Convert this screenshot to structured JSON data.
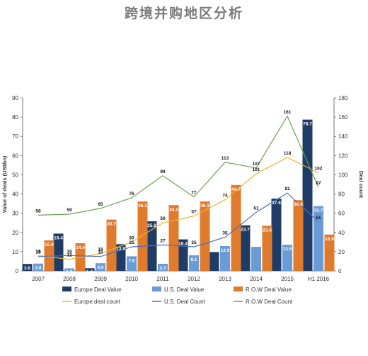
{
  "title": "跨境并购地区分析",
  "chart_data": {
    "type": "bar",
    "title": "跨境并购地区分析",
    "categories": [
      "2007",
      "2008",
      "2009",
      "2010",
      "2011",
      "2012",
      "2013",
      "2014",
      "2015",
      "H1 2016"
    ],
    "ylabel": "Value of deals (US$bn)",
    "y2label": "Deal count",
    "ylim": [
      0,
      90
    ],
    "y2lim": [
      0,
      180
    ],
    "yticks": [
      "0",
      "10",
      "20",
      "30",
      "40",
      "50",
      "60",
      "70",
      "80",
      "90"
    ],
    "y2ticks": [
      "0",
      "20",
      "40",
      "60",
      "80",
      "100",
      "120",
      "140",
      "160",
      "180"
    ],
    "grid": false,
    "legend_position": "bottom",
    "bar_series": [
      {
        "name": "Europe Deal Value",
        "color": "#1f3c66",
        "values": [
          3.6,
          19.4,
          1.4,
          13.9,
          25.8,
          16.4,
          9.8,
          23.7,
          37.6,
          78.7
        ],
        "labels": [
          "3.6",
          "19.4",
          "1.4",
          "13.9",
          "25.8",
          "16.4",
          "",
          "23.7",
          "37.6",
          "78.7"
        ]
      },
      {
        "name": "U.S. Deal Value",
        "color": "#6b9bd6",
        "values": [
          3.8,
          1.3,
          4.0,
          7.6,
          3.7,
          8.1,
          12.9,
          12.5,
          13.6,
          33.7
        ],
        "labels": [
          "3.8",
          "1.3",
          "4.0",
          "7.6",
          "3.7",
          "8.1",
          "12.9",
          "",
          "13.6",
          "33.7"
        ]
      },
      {
        "name": "R.O.W Deal Value",
        "color": "#e07b2e",
        "values": [
          15.9,
          14.4,
          26.7,
          36.1,
          34.2,
          36.1,
          44.7,
          23.5,
          36.8,
          18.9
        ],
        "labels": [
          "15.9",
          "14.4",
          "26.7",
          "36.1",
          "34.2",
          "36.1",
          "44.7",
          "23.5",
          "36.8",
          "18.9"
        ]
      }
    ],
    "line_series": [
      {
        "name": "Europe deal count",
        "color": "#f0b429",
        "values": [
          16,
          12,
          18,
          30,
          50,
          57,
          74,
          101,
          118,
          102
        ],
        "labels": [
          "16",
          "12",
          "18",
          "30",
          "50",
          "57",
          "74",
          "101",
          "118",
          "102"
        ]
      },
      {
        "name": "U.S. Deal Count",
        "color": "#4a6fc0",
        "values": [
          15,
          16,
          15,
          25,
          27,
          25,
          35,
          61,
          81,
          51
        ],
        "labels": [
          "15",
          "16",
          "15",
          "25",
          "27",
          "25",
          "35",
          "61",
          "81",
          "51"
        ]
      },
      {
        "name": "R.O.W Deal Count",
        "color": "#6da34d",
        "values": [
          58,
          59,
          65,
          76,
          99,
          77,
          113,
          107,
          161,
          87
        ],
        "labels": [
          "58",
          "59",
          "65",
          "76",
          "99",
          "77",
          "113",
          "107",
          "161",
          "87"
        ]
      }
    ]
  }
}
